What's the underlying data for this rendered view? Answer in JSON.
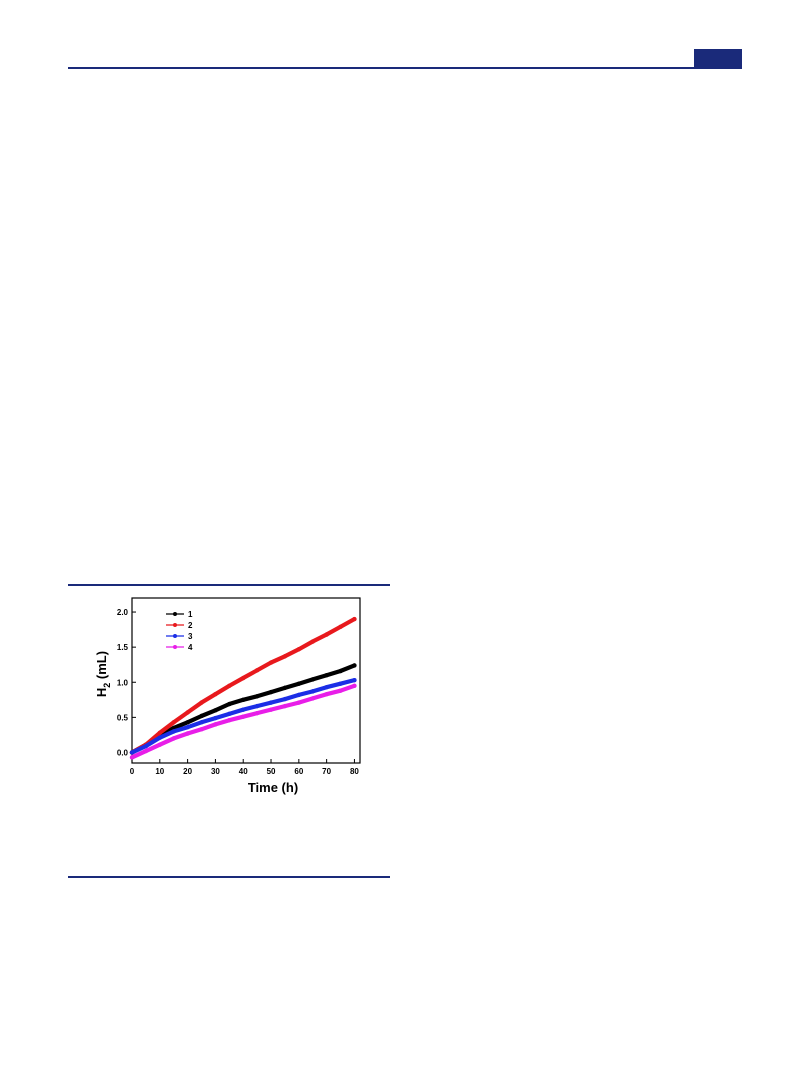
{
  "page": {
    "header_accent_color": "#1a2a7a"
  },
  "chart_data": {
    "type": "line",
    "title": "",
    "xlabel": "Time (h)",
    "ylabel_main": "H",
    "ylabel_sub": "2",
    "ylabel_unit": " (mL)",
    "xlim": [
      0,
      82
    ],
    "ylim": [
      -0.15,
      2.2
    ],
    "xticks": [
      0,
      10,
      20,
      30,
      40,
      50,
      60,
      70,
      80
    ],
    "xtick_labels": [
      "0",
      "10",
      "20",
      "30",
      "40",
      "50",
      "60",
      "70",
      "80"
    ],
    "yticks": [
      0.0,
      0.5,
      1.0,
      1.5,
      2.0
    ],
    "ytick_labels": [
      "0.0",
      "0.5",
      "1.0",
      "1.5",
      "2.0"
    ],
    "grid": false,
    "legend_position": "top-left",
    "series": [
      {
        "name": "1",
        "color": "#000000",
        "x": [
          0,
          5,
          10,
          15,
          20,
          25,
          30,
          35,
          40,
          45,
          50,
          55,
          60,
          65,
          70,
          75,
          80
        ],
        "y": [
          0.0,
          0.11,
          0.24,
          0.35,
          0.43,
          0.52,
          0.6,
          0.69,
          0.75,
          0.8,
          0.86,
          0.92,
          0.98,
          1.04,
          1.1,
          1.16,
          1.24
        ]
      },
      {
        "name": "2",
        "color": "#e8191d",
        "x": [
          0,
          5,
          10,
          15,
          20,
          25,
          30,
          35,
          40,
          45,
          50,
          55,
          60,
          65,
          70,
          75,
          80
        ],
        "y": [
          0.0,
          0.11,
          0.28,
          0.43,
          0.57,
          0.71,
          0.83,
          0.95,
          1.06,
          1.17,
          1.28,
          1.37,
          1.47,
          1.58,
          1.68,
          1.79,
          1.9
        ]
      },
      {
        "name": "3",
        "color": "#1b2ee6",
        "x": [
          0,
          5,
          10,
          15,
          20,
          25,
          30,
          35,
          40,
          45,
          50,
          55,
          60,
          65,
          70,
          75,
          80
        ],
        "y": [
          0.0,
          0.09,
          0.21,
          0.3,
          0.36,
          0.43,
          0.49,
          0.55,
          0.61,
          0.66,
          0.71,
          0.76,
          0.82,
          0.87,
          0.93,
          0.98,
          1.03
        ]
      },
      {
        "name": "4",
        "color": "#e81ee8",
        "x": [
          0,
          5,
          10,
          15,
          20,
          25,
          30,
          35,
          40,
          45,
          50,
          55,
          60,
          65,
          70,
          75,
          80
        ],
        "y": [
          -0.07,
          0.02,
          0.11,
          0.2,
          0.27,
          0.33,
          0.4,
          0.46,
          0.51,
          0.56,
          0.61,
          0.66,
          0.71,
          0.77,
          0.83,
          0.88,
          0.95
        ]
      }
    ]
  }
}
